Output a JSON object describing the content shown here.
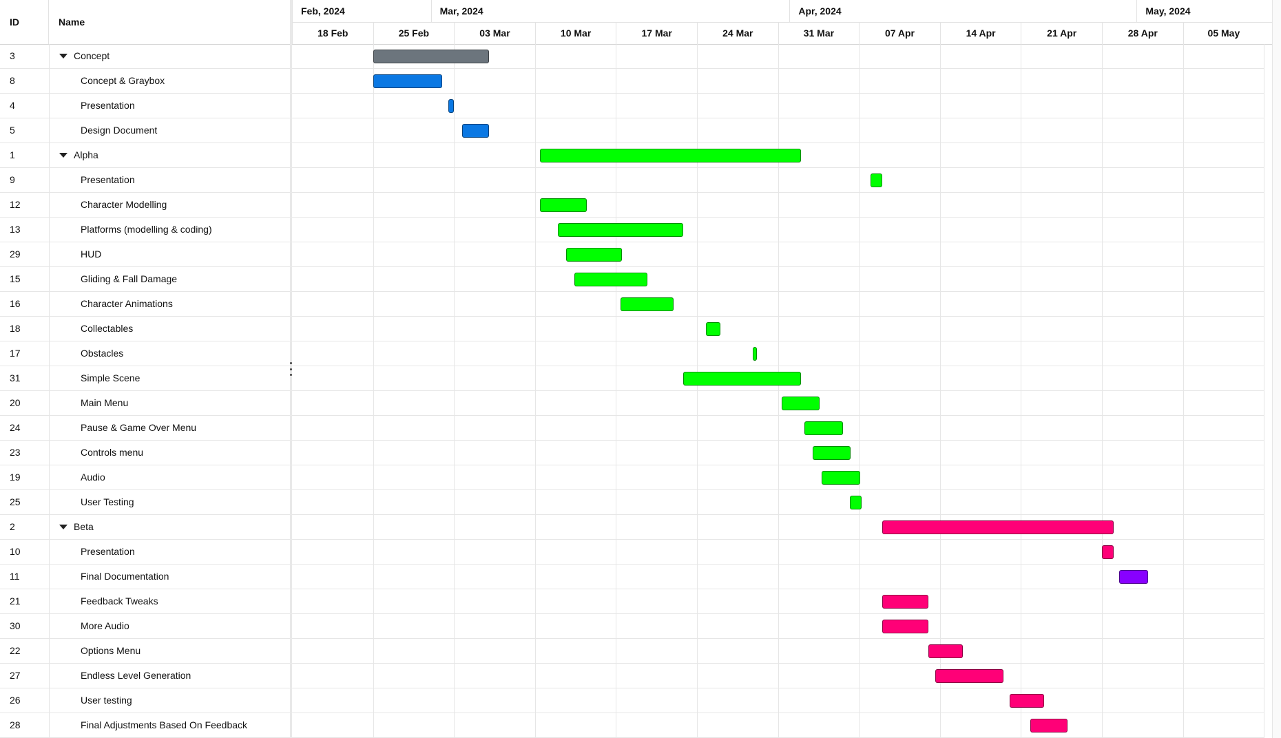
{
  "columns": {
    "id": "ID",
    "name": "Name"
  },
  "timescale": {
    "months": [
      "Feb, 2024",
      "Mar, 2024",
      "Apr, 2024",
      "May, 2024"
    ],
    "weeks": [
      "18 Feb",
      "25 Feb",
      "03 Mar",
      "10 Mar",
      "17 Mar",
      "24 Mar",
      "31 Mar",
      "07 Apr",
      "14 Apr",
      "21 Apr",
      "28 Apr",
      "05 May"
    ]
  },
  "colors": {
    "summary_concept": "#6c757d",
    "concept": "#0b78e3",
    "alpha": "#00ff00",
    "beta": "#ff0077",
    "purple": "#8800ff"
  },
  "tasks": [
    {
      "id": "3",
      "name": "Concept",
      "group": true,
      "start": "2024-02-25",
      "end": "2024-03-06",
      "color": "summary_concept"
    },
    {
      "id": "8",
      "name": "Concept & Graybox",
      "start": "2024-02-25",
      "end": "2024-03-02",
      "color": "concept"
    },
    {
      "id": "4",
      "name": "Presentation",
      "start": "2024-03-02.5",
      "end": "2024-03-03",
      "color": "concept"
    },
    {
      "id": "5",
      "name": "Design Document",
      "start": "2024-03-03.7",
      "end": "2024-03-06",
      "color": "concept"
    },
    {
      "id": "1",
      "name": "Alpha",
      "group": true,
      "start": "2024-03-10.4",
      "end": "2024-04-02",
      "color": "alpha"
    },
    {
      "id": "9",
      "name": "Presentation",
      "start": "2024-04-08",
      "end": "2024-04-09",
      "color": "alpha"
    },
    {
      "id": "12",
      "name": "Character Modelling",
      "start": "2024-03-10.4",
      "end": "2024-03-14.5",
      "color": "alpha"
    },
    {
      "id": "13",
      "name": "Platforms (modelling & coding)",
      "start": "2024-03-12",
      "end": "2024-03-22.8",
      "color": "alpha"
    },
    {
      "id": "29",
      "name": "HUD",
      "start": "2024-03-12.7",
      "end": "2024-03-17.5",
      "color": "alpha"
    },
    {
      "id": "15",
      "name": "Gliding & Fall Damage",
      "start": "2024-03-13.4",
      "end": "2024-03-19.7",
      "color": "alpha"
    },
    {
      "id": "16",
      "name": "Character Animations",
      "start": "2024-03-17.4",
      "end": "2024-03-22",
      "color": "alpha"
    },
    {
      "id": "18",
      "name": "Collectables",
      "start": "2024-03-24.8",
      "end": "2024-03-26",
      "color": "alpha"
    },
    {
      "id": "17",
      "name": "Obstacles",
      "start": "2024-03-28.8",
      "end": "2024-03-29",
      "color": "alpha"
    },
    {
      "id": "31",
      "name": "Simple Scene",
      "start": "2024-03-22.8",
      "end": "2024-04-02",
      "color": "alpha"
    },
    {
      "id": "20",
      "name": "Main Menu",
      "start": "2024-03-31.3",
      "end": "2024-04-03.6",
      "color": "alpha"
    },
    {
      "id": "24",
      "name": "Pause & Game Over Menu",
      "start": "2024-04-02.3",
      "end": "2024-04-05.6",
      "color": "alpha"
    },
    {
      "id": "23",
      "name": "Controls menu",
      "start": "2024-04-03",
      "end": "2024-04-06.3",
      "color": "alpha"
    },
    {
      "id": "19",
      "name": "Audio",
      "start": "2024-04-03.8",
      "end": "2024-04-07.1",
      "color": "alpha"
    },
    {
      "id": "25",
      "name": "User Testing",
      "start": "2024-04-06.2",
      "end": "2024-04-07.2",
      "color": "alpha"
    },
    {
      "id": "2",
      "name": "Beta",
      "group": true,
      "start": "2024-04-09",
      "end": "2024-04-29",
      "color": "beta"
    },
    {
      "id": "10",
      "name": "Presentation",
      "start": "2024-04-28",
      "end": "2024-04-29",
      "color": "beta"
    },
    {
      "id": "11",
      "name": "Final Documentation",
      "start": "2024-04-29.5",
      "end": "2024-05-02",
      "color": "purple"
    },
    {
      "id": "21",
      "name": "Feedback Tweaks",
      "start": "2024-04-09",
      "end": "2024-04-13",
      "color": "beta"
    },
    {
      "id": "30",
      "name": "More Audio",
      "start": "2024-04-09",
      "end": "2024-04-13",
      "color": "beta"
    },
    {
      "id": "22",
      "name": "Options Menu",
      "start": "2024-04-13",
      "end": "2024-04-16",
      "color": "beta"
    },
    {
      "id": "27",
      "name": "Endless Level Generation",
      "start": "2024-04-13.6",
      "end": "2024-04-19.5",
      "color": "beta"
    },
    {
      "id": "26",
      "name": "User testing",
      "start": "2024-04-20",
      "end": "2024-04-23",
      "color": "beta"
    },
    {
      "id": "28",
      "name": "Final Adjustments Based On Feedback",
      "start": "2024-04-21.8",
      "end": "2024-04-25",
      "color": "beta"
    }
  ]
}
